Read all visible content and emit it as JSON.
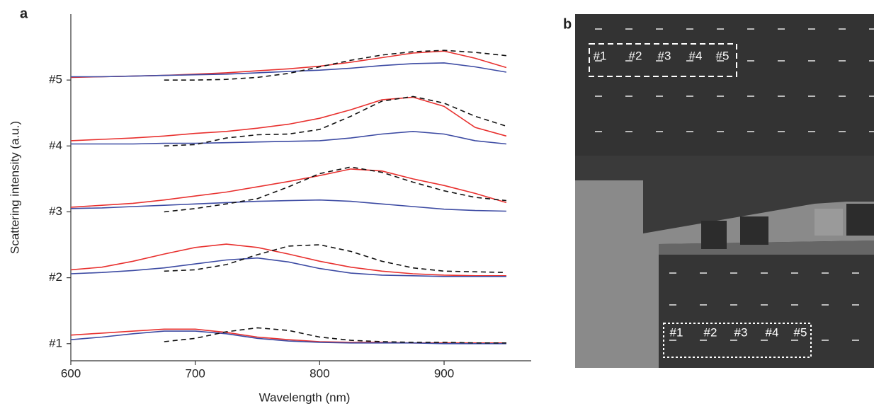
{
  "chart_data": {
    "type": "line",
    "panel_label": "a",
    "x_label": "Wavelength (nm)",
    "y_label": "Scattering intensity (a.u.)",
    "x": [
      600,
      625,
      650,
      675,
      700,
      725,
      750,
      775,
      800,
      825,
      850,
      875,
      900,
      925,
      950
    ],
    "xlim": [
      600,
      970
    ],
    "xticks": [
      600,
      700,
      800,
      900
    ],
    "ylim": [
      0.74,
      6.0
    ],
    "yticks": [
      {
        "value": 1,
        "label": "#1"
      },
      {
        "value": 2,
        "label": "#2"
      },
      {
        "value": 3,
        "label": "#3"
      },
      {
        "value": 4,
        "label": "#4"
      },
      {
        "value": 5,
        "label": "#5"
      }
    ],
    "series": [
      {
        "color": "#e8312f",
        "linestyle": "solid",
        "values": [
          5.04,
          5.05,
          5.06,
          5.07,
          5.09,
          5.11,
          5.14,
          5.17,
          5.21,
          5.27,
          5.34,
          5.41,
          5.44,
          5.33,
          5.19
        ]
      },
      {
        "color": "#3d4ba3",
        "linestyle": "solid",
        "values": [
          5.05,
          5.05,
          5.06,
          5.07,
          5.08,
          5.09,
          5.11,
          5.13,
          5.15,
          5.18,
          5.22,
          5.25,
          5.26,
          5.2,
          5.12
        ]
      },
      {
        "color": "#111111",
        "linestyle": "dashed",
        "values": [
          null,
          null,
          null,
          5.0,
          5.0,
          5.01,
          5.04,
          5.1,
          5.2,
          5.3,
          5.38,
          5.43,
          5.45,
          5.42,
          5.37
        ]
      },
      {
        "color": "#e8312f",
        "linestyle": "solid",
        "values": [
          4.08,
          4.1,
          4.12,
          4.15,
          4.19,
          4.22,
          4.27,
          4.33,
          4.42,
          4.55,
          4.7,
          4.74,
          4.6,
          4.28,
          4.15
        ]
      },
      {
        "color": "#3d4ba3",
        "linestyle": "solid",
        "values": [
          4.03,
          4.03,
          4.03,
          4.04,
          4.04,
          4.05,
          4.06,
          4.07,
          4.08,
          4.12,
          4.18,
          4.22,
          4.18,
          4.08,
          4.03
        ]
      },
      {
        "color": "#111111",
        "linestyle": "dashed",
        "values": [
          null,
          null,
          null,
          4.0,
          4.02,
          4.12,
          4.17,
          4.18,
          4.25,
          4.45,
          4.68,
          4.75,
          4.65,
          4.45,
          4.3
        ]
      },
      {
        "color": "#e8312f",
        "linestyle": "solid",
        "values": [
          3.07,
          3.1,
          3.13,
          3.18,
          3.24,
          3.3,
          3.38,
          3.46,
          3.55,
          3.65,
          3.62,
          3.5,
          3.4,
          3.28,
          3.14
        ]
      },
      {
        "color": "#3d4ba3",
        "linestyle": "solid",
        "values": [
          3.05,
          3.06,
          3.08,
          3.1,
          3.12,
          3.14,
          3.16,
          3.17,
          3.18,
          3.16,
          3.12,
          3.08,
          3.04,
          3.02,
          3.01
        ]
      },
      {
        "color": "#111111",
        "linestyle": "dashed",
        "values": [
          null,
          null,
          null,
          3.0,
          3.05,
          3.12,
          3.2,
          3.38,
          3.58,
          3.68,
          3.6,
          3.45,
          3.32,
          3.22,
          3.17
        ]
      },
      {
        "color": "#e8312f",
        "linestyle": "solid",
        "values": [
          2.12,
          2.16,
          2.25,
          2.36,
          2.46,
          2.51,
          2.46,
          2.36,
          2.25,
          2.16,
          2.1,
          2.06,
          2.04,
          2.03,
          2.03
        ]
      },
      {
        "color": "#3d4ba3",
        "linestyle": "solid",
        "values": [
          2.06,
          2.08,
          2.11,
          2.15,
          2.21,
          2.27,
          2.3,
          2.24,
          2.14,
          2.07,
          2.04,
          2.03,
          2.02,
          2.02,
          2.02
        ]
      },
      {
        "color": "#111111",
        "linestyle": "dashed",
        "values": [
          null,
          null,
          null,
          2.1,
          2.12,
          2.2,
          2.35,
          2.48,
          2.5,
          2.4,
          2.25,
          2.15,
          2.1,
          2.09,
          2.08
        ]
      },
      {
        "color": "#e8312f",
        "linestyle": "solid",
        "values": [
          1.13,
          1.16,
          1.19,
          1.22,
          1.22,
          1.17,
          1.1,
          1.06,
          1.03,
          1.02,
          1.02,
          1.01,
          1.01,
          1.01,
          1.01
        ]
      },
      {
        "color": "#3d4ba3",
        "linestyle": "solid",
        "values": [
          1.06,
          1.1,
          1.15,
          1.19,
          1.19,
          1.15,
          1.08,
          1.04,
          1.02,
          1.01,
          1.01,
          1.01,
          1.0,
          1.0,
          1.0
        ]
      },
      {
        "color": "#111111",
        "linestyle": "dashed",
        "values": [
          null,
          null,
          null,
          1.03,
          1.08,
          1.18,
          1.24,
          1.2,
          1.1,
          1.05,
          1.03,
          1.02,
          1.02,
          1.01,
          1.01
        ]
      }
    ]
  },
  "panel_b": {
    "label": "b",
    "top_labels": [
      "#1",
      "#2",
      "#3",
      "#4",
      "#5"
    ],
    "bottom_labels": [
      "#1",
      "#2",
      "#3",
      "#4",
      "#5"
    ]
  }
}
